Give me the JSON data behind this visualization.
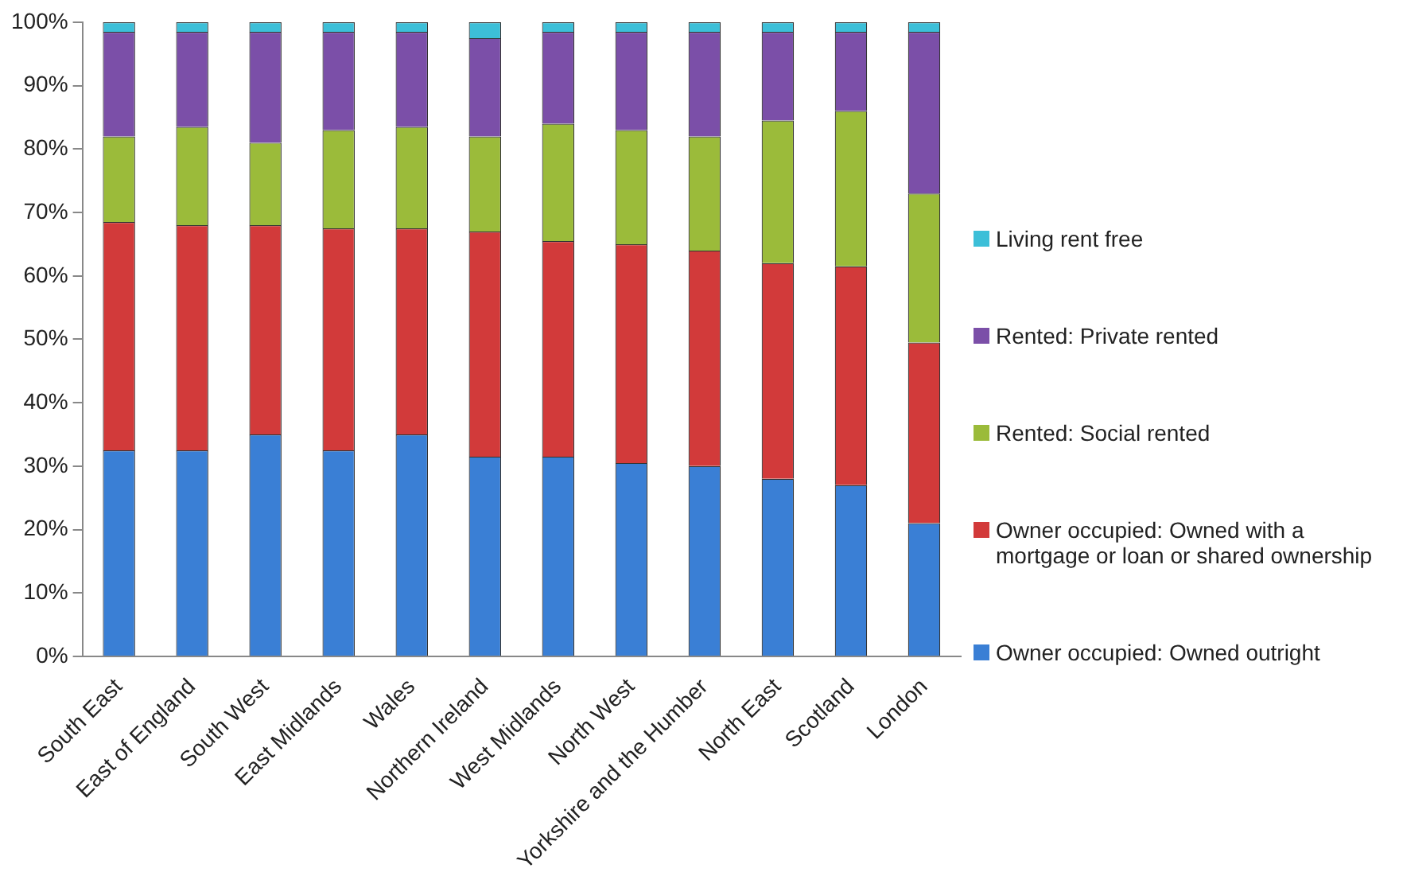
{
  "chart_data": {
    "type": "bar",
    "stacked": true,
    "legend": "right",
    "grid": false,
    "categories": [
      "South East",
      "East of England",
      "South West",
      "East Midlands",
      "Wales",
      "Northern Ireland",
      "West Midlands",
      "North West",
      "Yorkshire and the Humber",
      "North East",
      "Scotland",
      "London"
    ],
    "ylim": [
      0,
      100
    ],
    "yticks": [
      {
        "value": 0,
        "label": "0%"
      },
      {
        "value": 10,
        "label": "10%"
      },
      {
        "value": 20,
        "label": "20%"
      },
      {
        "value": 30,
        "label": "30%"
      },
      {
        "value": 40,
        "label": "40%"
      },
      {
        "value": 50,
        "label": "50%"
      },
      {
        "value": 60,
        "label": "60%"
      },
      {
        "value": 70,
        "label": "70%"
      },
      {
        "value": 80,
        "label": "80%"
      },
      {
        "value": 90,
        "label": "90%"
      },
      {
        "value": 100,
        "label": "100%"
      }
    ],
    "series": [
      {
        "name": "Owner occupied: Owned outright",
        "color": "#3a7fd5",
        "values": [
          32.5,
          32.5,
          35,
          32.5,
          35,
          31.5,
          31.5,
          30.5,
          30,
          28,
          27,
          21
        ]
      },
      {
        "name": "Owner occupied: Owned with a mortgage or loan or shared ownership",
        "color": "#d23a3a",
        "values": [
          36,
          35.5,
          33,
          35,
          32.5,
          35.5,
          34,
          34.5,
          34,
          34,
          34.5,
          28.5
        ]
      },
      {
        "name": "Rented: Social rented",
        "color": "#9bbb3a",
        "values": [
          13.5,
          15.5,
          13,
          15.5,
          16,
          15,
          18.5,
          18,
          18,
          22.5,
          24.5,
          23.5
        ]
      },
      {
        "name": "Rented: Private rented",
        "color": "#7b4fa8",
        "values": [
          16.5,
          15,
          17.5,
          15.5,
          15,
          15.5,
          14.5,
          15.5,
          16.5,
          14,
          12.5,
          25.5
        ]
      },
      {
        "name": "Living rent free",
        "color": "#3cbfd8",
        "values": [
          1.5,
          1.5,
          1.5,
          1.5,
          1.5,
          2.5,
          1.5,
          1.5,
          1.5,
          1.5,
          1.5,
          1.5
        ]
      }
    ]
  }
}
